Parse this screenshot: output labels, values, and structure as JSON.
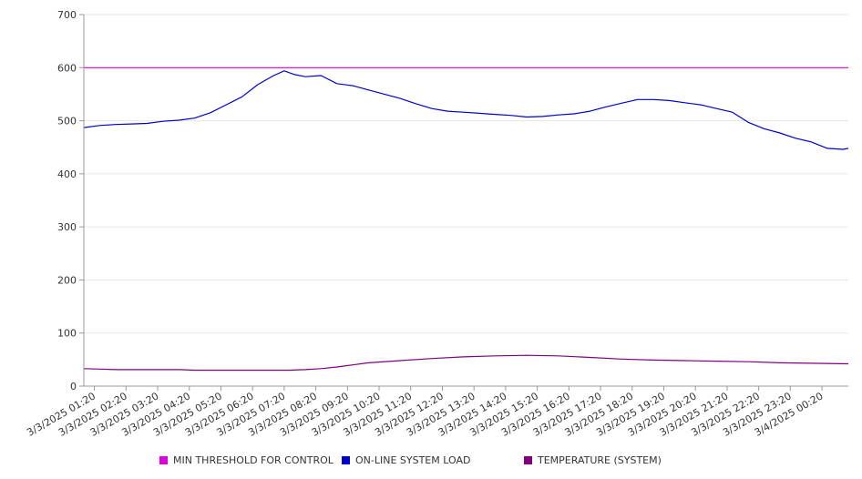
{
  "chart_data": {
    "type": "line",
    "title": "",
    "xlabel": "",
    "ylabel": "",
    "ylim": [
      0,
      700
    ],
    "yticks": [
      0,
      100,
      200,
      300,
      400,
      500,
      600,
      700
    ],
    "x_range": [
      "3/3/2025 01:00",
      "3/4/2025 01:10"
    ],
    "xtick_labels": [
      "3/3/2025 01:20",
      "3/3/2025 02:20",
      "3/3/2025 03:20",
      "3/3/2025 04:20",
      "3/3/2025 05:20",
      "3/3/2025 06:20",
      "3/3/2025 07:20",
      "3/3/2025 08:20",
      "3/3/2025 09:20",
      "3/3/2025 10:20",
      "3/3/2025 11:20",
      "3/3/2025 12:20",
      "3/3/2025 13:20",
      "3/3/2025 14:20",
      "3/3/2025 15:20",
      "3/3/2025 16:20",
      "3/3/2025 17:20",
      "3/3/2025 18:20",
      "3/3/2025 19:20",
      "3/3/2025 20:20",
      "3/3/2025 21:20",
      "3/3/2025 22:20",
      "3/3/2025 23:20",
      "3/4/2025 00:20"
    ],
    "grid": true,
    "legend_position": "bottom",
    "series": [
      {
        "name": "MIN THRESHOLD FOR CONTROL",
        "color": "#dd00dd",
        "x": [
          "3/3/2025 01:00",
          "3/4/2025 01:10"
        ],
        "y": [
          600,
          600
        ]
      },
      {
        "name": "ON-LINE SYSTEM LOAD",
        "color": "#0000cc",
        "x": [
          "3/3/2025 01:00",
          "3/3/2025 01:30",
          "3/3/2025 02:00",
          "3/3/2025 02:30",
          "3/3/2025 03:00",
          "3/3/2025 03:30",
          "3/3/2025 04:00",
          "3/3/2025 04:30",
          "3/3/2025 05:00",
          "3/3/2025 05:30",
          "3/3/2025 06:00",
          "3/3/2025 06:30",
          "3/3/2025 07:00",
          "3/3/2025 07:20",
          "3/3/2025 07:40",
          "3/3/2025 08:00",
          "3/3/2025 08:30",
          "3/3/2025 09:00",
          "3/3/2025 09:30",
          "3/3/2025 10:00",
          "3/3/2025 10:30",
          "3/3/2025 11:00",
          "3/3/2025 11:30",
          "3/3/2025 12:00",
          "3/3/2025 12:30",
          "3/3/2025 13:00",
          "3/3/2025 13:30",
          "3/3/2025 14:00",
          "3/3/2025 14:30",
          "3/3/2025 15:00",
          "3/3/2025 15:30",
          "3/3/2025 16:00",
          "3/3/2025 16:30",
          "3/3/2025 17:00",
          "3/3/2025 17:30",
          "3/3/2025 18:00",
          "3/3/2025 18:30",
          "3/3/2025 19:00",
          "3/3/2025 19:30",
          "3/3/2025 20:00",
          "3/3/2025 20:30",
          "3/3/2025 21:00",
          "3/3/2025 21:30",
          "3/3/2025 22:00",
          "3/3/2025 22:30",
          "3/3/2025 23:00",
          "3/3/2025 23:30",
          "3/4/2025 00:00",
          "3/4/2025 00:30",
          "3/4/2025 01:00",
          "3/4/2025 01:10"
        ],
        "y": [
          487,
          491,
          493,
          494,
          495,
          499,
          501,
          505,
          515,
          530,
          545,
          568,
          585,
          594,
          587,
          583,
          585,
          570,
          566,
          558,
          550,
          542,
          532,
          523,
          518,
          516,
          514,
          512,
          510,
          507,
          508,
          511,
          513,
          518,
          526,
          533,
          540,
          540,
          538,
          534,
          530,
          523,
          516,
          497,
          485,
          477,
          467,
          460,
          448,
          446,
          448
        ]
      },
      {
        "name": "TEMPERATURE (SYSTEM)",
        "color": "#800080",
        "x": [
          "3/3/2025 01:00",
          "3/3/2025 01:30",
          "3/3/2025 02:00",
          "3/3/2025 03:00",
          "3/3/2025 04:00",
          "3/3/2025 04:30",
          "3/3/2025 05:00",
          "3/3/2025 06:00",
          "3/3/2025 07:00",
          "3/3/2025 07:30",
          "3/3/2025 08:00",
          "3/3/2025 08:30",
          "3/3/2025 09:00",
          "3/3/2025 09:30",
          "3/3/2025 10:00",
          "3/3/2025 11:00",
          "3/3/2025 12:00",
          "3/3/2025 13:00",
          "3/3/2025 14:00",
          "3/3/2025 15:00",
          "3/3/2025 16:00",
          "3/3/2025 17:00",
          "3/3/2025 18:00",
          "3/3/2025 19:00",
          "3/3/2025 20:00",
          "3/3/2025 21:00",
          "3/3/2025 22:00",
          "3/3/2025 23:00",
          "3/4/2025 00:00",
          "3/4/2025 01:10"
        ],
        "y": [
          33,
          32,
          31,
          31,
          31,
          30,
          30,
          30,
          30,
          30,
          31,
          33,
          36,
          40,
          44,
          48,
          52,
          55,
          57,
          58,
          57,
          54,
          51,
          49,
          48,
          47,
          46,
          44,
          43,
          42
        ]
      }
    ]
  }
}
